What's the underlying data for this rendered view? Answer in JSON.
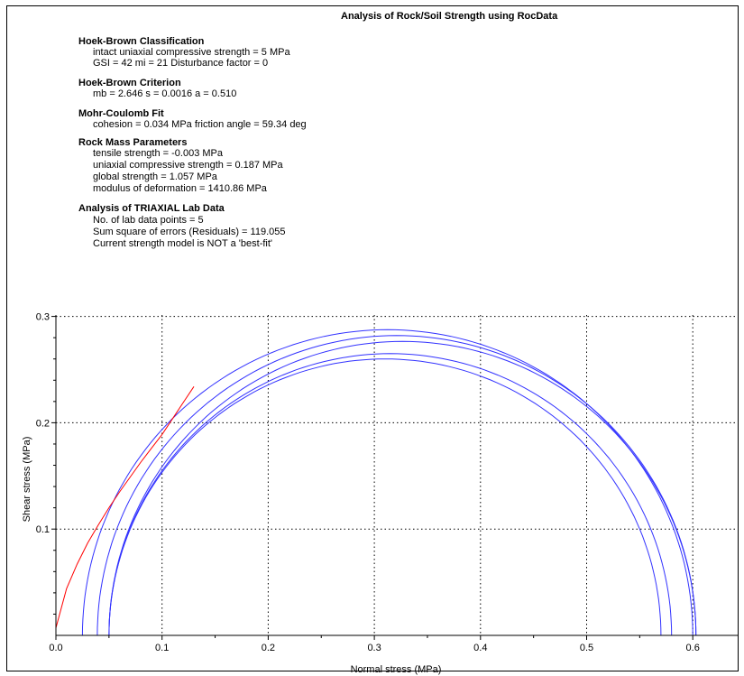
{
  "title": "Analysis of Rock/Soil Strength using RocData",
  "sections": [
    {
      "heading": "Hoek-Brown Classification",
      "lines": [
        "intact uniaxial compressive strength = 5 MPa",
        "GSI = 42    mi = 21    Disturbance factor = 0"
      ]
    },
    {
      "heading": "Hoek-Brown Criterion",
      "lines": [
        "mb = 2.646    s = 0.0016    a = 0.510"
      ]
    },
    {
      "heading": "Mohr-Coulomb Fit",
      "lines": [
        "cohesion = 0.034 MPa    friction angle = 59.34 deg"
      ]
    },
    {
      "heading": "Rock Mass Parameters",
      "lines": [
        "tensile strength = -0.003 MPa",
        "uniaxial compressive strength = 0.187 MPa",
        "global strength = 1.057 MPa",
        "modulus of deformation = 1410.86 MPa"
      ]
    },
    {
      "heading": "Analysis of TRIAXIAL Lab Data",
      "lines": [
        "No. of lab data points = 5",
        "Sum square of errors (Residuals) = 119.055",
        "Current strength model is NOT a 'best-fit'"
      ]
    }
  ],
  "chart_data": {
    "type": "line",
    "xlabel": "Normal stress (MPa)",
    "ylabel": "Shear stress (MPa)",
    "xlim": [
      0,
      0.66
    ],
    "ylim": [
      0,
      0.3
    ],
    "xticks": [
      "0.0",
      "0.1",
      "0.2",
      "0.3",
      "0.4",
      "0.5",
      "0.6"
    ],
    "xtick_values": [
      0,
      0.1,
      0.2,
      0.3,
      0.4,
      0.5,
      0.6
    ],
    "yticks": [
      "0.1",
      "0.2",
      "0.3"
    ],
    "ytick_values": [
      0.1,
      0.2,
      0.3
    ],
    "grid": true,
    "mohr_circles": [
      {
        "sigma3": 0.025,
        "sigma1": 0.6
      },
      {
        "sigma3": 0.039,
        "sigma1": 0.603
      },
      {
        "sigma3": 0.05,
        "sigma1": 0.57
      },
      {
        "sigma3": 0.05,
        "sigma1": 0.58
      },
      {
        "sigma3": 0.05,
        "sigma1": 0.603
      }
    ],
    "envelope": {
      "color": "#ff0000",
      "x": [
        0.0,
        0.01,
        0.02,
        0.03,
        0.04,
        0.05,
        0.06,
        0.07,
        0.08,
        0.09,
        0.1,
        0.11,
        0.12,
        0.13
      ],
      "y": [
        0.007,
        0.044,
        0.067,
        0.087,
        0.104,
        0.12,
        0.135,
        0.149,
        0.163,
        0.176,
        0.189,
        0.204,
        0.219,
        0.234
      ]
    },
    "circle_color": "#3333ff"
  }
}
